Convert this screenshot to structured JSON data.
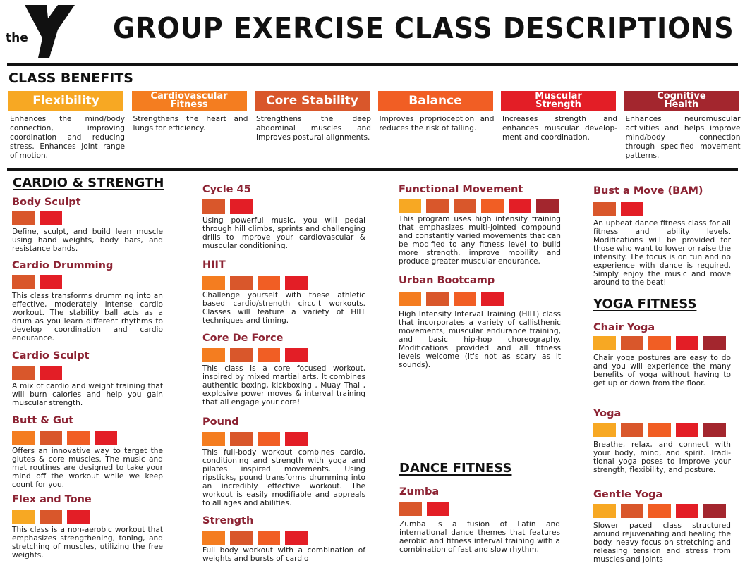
{
  "logo": {
    "text_the": "the",
    "text_ymca": "YMCA"
  },
  "title": "GROUP EXERCISE CLASS DESCRIPTIONS",
  "benefits": {
    "heading": "CLASS BENEFITS",
    "items": [
      {
        "label": "Flexibility",
        "color": "#F7A823",
        "text": "Enhances the mind/body connection, improving coordination and reducing stress. Enhances joint range of motion."
      },
      {
        "label": "Cardiovascular Fitness",
        "color": "#F47D20",
        "text": "Strengthens the heart and lungs for efficiency."
      },
      {
        "label": "Core Stability",
        "color": "#D9572B",
        "text": "Strengthens the deep abdominal muscles and improves postural alignments."
      },
      {
        "label": "Balance",
        "color": "#F15E24",
        "text": "Improves proprioception and reduces the risk of falling."
      },
      {
        "label": "Muscular Strength",
        "color": "#E31E26",
        "text": "Increases strength and enhances muscular develop-ment and coordination."
      },
      {
        "label": "Cognitive Health",
        "color": "#A3262E",
        "text": "Enhances neuromuscular activities and helps improve mind/body connection through specified movement patterns."
      }
    ]
  },
  "sections": {
    "cardio_strength": "CARDIO & STRENGTH",
    "dance_fitness": "DANCE FITNESS",
    "yoga_fitness": "YOGA FITNESS"
  },
  "classes": [
    {
      "name": "Body Sculpt",
      "swatches": [
        "#D9572B",
        "#E31E26"
      ],
      "text": "Define, sculpt, and build lean muscle using hand weights, body bars, and resistance bands."
    },
    {
      "name": "Cardio Drumming",
      "swatches": [
        "#D9572B",
        "#E31E26"
      ],
      "text": "This class transforms drumming into an effective, moderately intense cardio workout. The stability ball acts as a drum as you learn different rhythms to develop coordination and cardio endurance."
    },
    {
      "name": "Cardio Sculpt",
      "swatches": [
        "#D9572B",
        "#E31E26"
      ],
      "text": "A mix of cardio and weight training that will burn calories and help you gain muscular strength."
    },
    {
      "name": "Butt & Gut",
      "swatches": [
        "#F47D20",
        "#D9572B",
        "#F15E24",
        "#E31E26"
      ],
      "text": "Offers an innovative way to target the glutes & core muscles. The music and mat routines are designed to take your mind off the workout while we keep count for you."
    },
    {
      "name": "Flex and Tone",
      "swatches": [
        "#F7A823",
        "#D9572B",
        "#E31E26"
      ],
      "text": "This class is a non-aerobic workout that emphasizes strengthening, toning, and stretching of muscles, utilizing the free weights."
    },
    {
      "name": "Cycle 45",
      "swatches": [
        "#D9572B",
        "#E31E26"
      ],
      "text": "Using powerful music, you will pedal through hill climbs, sprints and challenging drills to improve your cardiovascular & muscular conditioning."
    },
    {
      "name": "HIIT",
      "swatches": [
        "#F47D20",
        "#D9572B",
        "#F15E24",
        "#E31E26"
      ],
      "text": "Challenge yourself with these athletic based cardio/strength circuit workouts. Classes will feature a variety of HIIT techniques and timing."
    },
    {
      "name": "Core De Force",
      "swatches": [
        "#F47D20",
        "#D9572B",
        "#F15E24",
        "#E31E26"
      ],
      "text": "This class is a core focused workout, inspired by mixed martial arts. It combines authentic boxing, kickboxing , Muay Thai , explosive power moves & interval training that all engage your core!"
    },
    {
      "name": "Pound",
      "swatches": [
        "#F47D20",
        "#D9572B",
        "#F15E24",
        "#E31E26"
      ],
      "text": "This full-body workout combines cardio, conditioning and strength with yoga and pilates inspired movements. Using ripsticks, pound transforms drumming into an incredibly effective workout. The workout is easily modifiable and appreals to all ages and abilities."
    },
    {
      "name": "Strength",
      "swatches": [
        "#F47D20",
        "#D9572B",
        "#F15E24",
        "#E31E26"
      ],
      "text": "Full body workout with a combination of weights and bursts of cardio"
    },
    {
      "name": "Functional Movement",
      "swatches": [
        "#F7A823",
        "#D9572B",
        "#D9572B",
        "#F15E24",
        "#E31E26",
        "#A3262E"
      ],
      "text": "This program uses high intensity training that emphasizes multi-jointed compound and constantly varied movements that can be modified to any fitness level to build more strength, improve mobility and produce greater muscular endurance."
    },
    {
      "name": "Urban Bootcamp",
      "swatches": [
        "#F47D20",
        "#D9572B",
        "#F15E24",
        "#E31E26"
      ],
      "text": "High Intensity Interval Training (HIIT) class that incorporates a variety of callisthenic movements, muscular endurance training, and basic hip-hop choreography. Modifications provided and all fitness levels welcome (it's not as scary as it sounds)."
    },
    {
      "name": "Zumba",
      "swatches": [
        "#D9572B",
        "#E31E26"
      ],
      "text": "Zumba is a fusion of Latin and international dance themes that features aerobic and fitness interval training with a combination of fast and slow rhythm."
    },
    {
      "name": "Bust a Move (BAM)",
      "swatches": [
        "#D9572B",
        "#E31E26"
      ],
      "text": "An upbeat dance fitness class for all fitness and ability levels. Modifications will be provided for those who want to lower or raise the intensity. The focus is on fun and no experience with dance is required. Simply enjoy the music and move around to the beat!"
    },
    {
      "name": "Chair Yoga",
      "swatches": [
        "#F7A823",
        "#D9572B",
        "#F15E24",
        "#E31E26",
        "#A3262E"
      ],
      "text": "Chair yoga postures are easy to do and you will experience the many benefits of yoga without having to get up or down from the floor."
    },
    {
      "name": "Yoga",
      "swatches": [
        "#F7A823",
        "#D9572B",
        "#F15E24",
        "#E31E26",
        "#A3262E"
      ],
      "text": "Breathe, relax, and connect with your body, mind, and spirit. Tradi-tional yoga poses to improve your strength, flexibility, and posture."
    },
    {
      "name": "Gentle Yoga",
      "swatches": [
        "#F7A823",
        "#D9572B",
        "#F15E24",
        "#E31E26",
        "#A3262E"
      ],
      "text": "Slower paced class structured around rejuvenating and healing the body. heavy focus on stretching and releasing tension and stress from muscles and joints"
    }
  ]
}
